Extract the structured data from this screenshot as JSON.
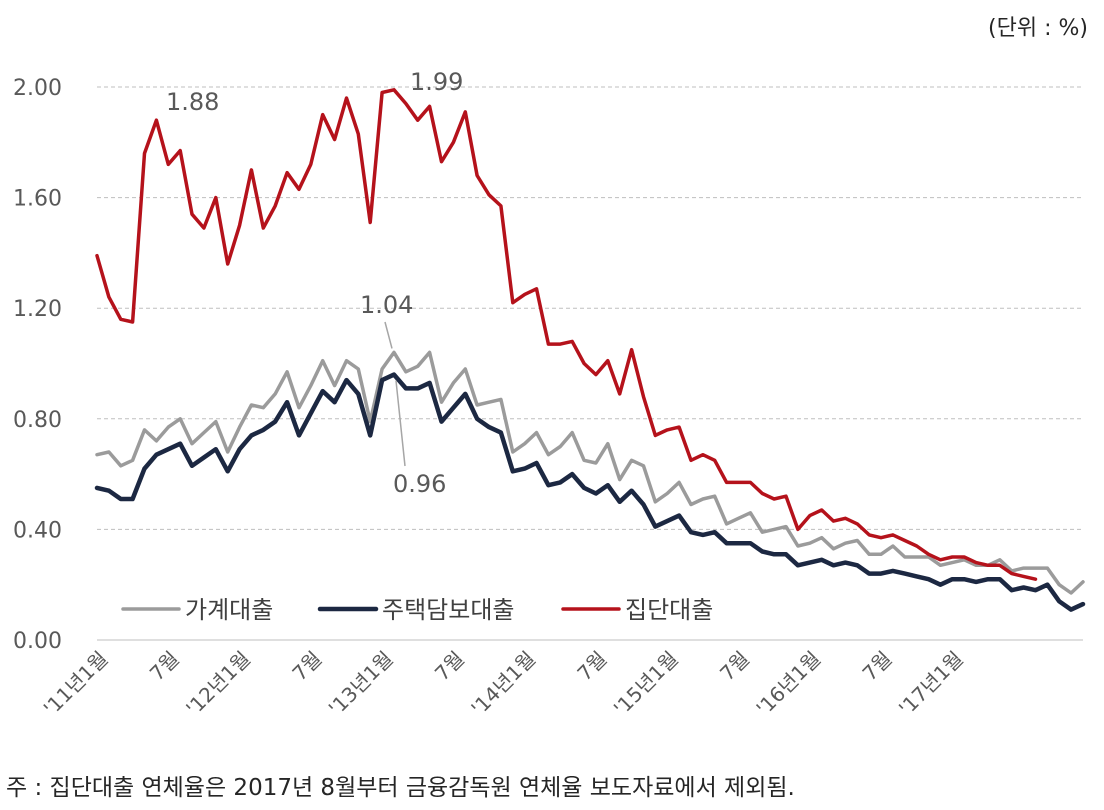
{
  "unit_label": "(단위 : %)",
  "footnote": "주 : 집단대출 연체율은 2017년 8월부터 금융감독원 연체율 보도자료에서 제외됨.",
  "chart_data": {
    "type": "line",
    "title": "",
    "xlabel": "",
    "ylabel": "",
    "ylim": [
      0,
      2.0
    ],
    "yticks": [
      "0.00",
      "0.40",
      "0.80",
      "1.20",
      "1.60",
      "2.00"
    ],
    "grid": "horizontal dashed",
    "legend_position": "bottom-left",
    "x_tick_labels": [
      {
        "index": 0,
        "label": "'11년1월"
      },
      {
        "index": 6,
        "label": "7월"
      },
      {
        "index": 12,
        "label": "'12년1월"
      },
      {
        "index": 18,
        "label": "7월"
      },
      {
        "index": 24,
        "label": "'13년1월"
      },
      {
        "index": 30,
        "label": "7월"
      },
      {
        "index": 36,
        "label": "'14년1월"
      },
      {
        "index": 42,
        "label": "7월"
      },
      {
        "index": 48,
        "label": "'15년1월"
      },
      {
        "index": 54,
        "label": "7월"
      },
      {
        "index": 60,
        "label": "'16년1월"
      },
      {
        "index": 66,
        "label": "7월"
      },
      {
        "index": 72,
        "label": "'17년1월"
      }
    ],
    "series": [
      {
        "name": "가계대출",
        "color": "#9b9b9b",
        "values": [
          0.67,
          0.68,
          0.63,
          0.65,
          0.76,
          0.72,
          0.77,
          0.8,
          0.71,
          0.75,
          0.79,
          0.68,
          0.77,
          0.85,
          0.84,
          0.89,
          0.97,
          0.84,
          0.92,
          1.01,
          0.92,
          1.01,
          0.98,
          0.79,
          0.98,
          1.04,
          0.97,
          0.99,
          1.04,
          0.86,
          0.93,
          0.98,
          0.85,
          0.86,
          0.87,
          0.68,
          0.71,
          0.75,
          0.67,
          0.7,
          0.75,
          0.65,
          0.64,
          0.71,
          0.58,
          0.65,
          0.63,
          0.5,
          0.53,
          0.57,
          0.49,
          0.51,
          0.52,
          0.42,
          0.44,
          0.46,
          0.39,
          0.4,
          0.41,
          0.34,
          0.35,
          0.37,
          0.33,
          0.35,
          0.36,
          0.31,
          0.31,
          0.34,
          0.3,
          0.3,
          0.3,
          0.27,
          0.28,
          0.29,
          0.27,
          0.27,
          0.29,
          0.25,
          0.26,
          0.26,
          0.26,
          0.2,
          0.17,
          0.21
        ]
      },
      {
        "name": "주택담보대출",
        "color": "#1c2842",
        "values": [
          0.55,
          0.54,
          0.51,
          0.51,
          0.62,
          0.67,
          0.69,
          0.71,
          0.63,
          0.66,
          0.69,
          0.61,
          0.69,
          0.74,
          0.76,
          0.79,
          0.86,
          0.74,
          0.82,
          0.9,
          0.86,
          0.94,
          0.89,
          0.74,
          0.94,
          0.96,
          0.91,
          0.91,
          0.93,
          0.79,
          0.84,
          0.89,
          0.8,
          0.77,
          0.75,
          0.61,
          0.62,
          0.64,
          0.56,
          0.57,
          0.6,
          0.55,
          0.53,
          0.56,
          0.5,
          0.54,
          0.49,
          0.41,
          0.43,
          0.45,
          0.39,
          0.38,
          0.39,
          0.35,
          0.35,
          0.35,
          0.32,
          0.31,
          0.31,
          0.27,
          0.28,
          0.29,
          0.27,
          0.28,
          0.27,
          0.24,
          0.24,
          0.25,
          0.24,
          0.23,
          0.22,
          0.2,
          0.22,
          0.22,
          0.21,
          0.22,
          0.22,
          0.18,
          0.19,
          0.18,
          0.2,
          0.14,
          0.11,
          0.13
        ]
      },
      {
        "name": "집단대출",
        "color": "#b5121b",
        "values": [
          1.39,
          1.24,
          1.16,
          1.15,
          1.76,
          1.88,
          1.72,
          1.77,
          1.54,
          1.49,
          1.6,
          1.36,
          1.5,
          1.7,
          1.49,
          1.57,
          1.69,
          1.63,
          1.72,
          1.9,
          1.81,
          1.96,
          1.83,
          1.51,
          1.98,
          1.99,
          1.94,
          1.88,
          1.93,
          1.73,
          1.8,
          1.91,
          1.68,
          1.61,
          1.57,
          1.22,
          1.25,
          1.27,
          1.07,
          1.07,
          1.08,
          1.0,
          0.96,
          1.01,
          0.89,
          1.05,
          0.88,
          0.74,
          0.76,
          0.77,
          0.65,
          0.67,
          0.65,
          0.57,
          0.57,
          0.57,
          0.53,
          0.51,
          0.52,
          0.4,
          0.45,
          0.47,
          0.43,
          0.44,
          0.42,
          0.38,
          0.37,
          0.38,
          0.36,
          0.34,
          0.31,
          0.29,
          0.3,
          0.3,
          0.28,
          0.27,
          0.27,
          0.24,
          0.23,
          0.22
        ]
      }
    ],
    "annotations": [
      {
        "text": "1.88",
        "series": "집단대출",
        "index": 5
      },
      {
        "text": "1.99",
        "series": "집단대출",
        "index": 25
      },
      {
        "text": "1.04",
        "series": "가계대출",
        "index": 25
      },
      {
        "text": "0.96",
        "series": "주택담보대출",
        "index": 25
      }
    ]
  }
}
